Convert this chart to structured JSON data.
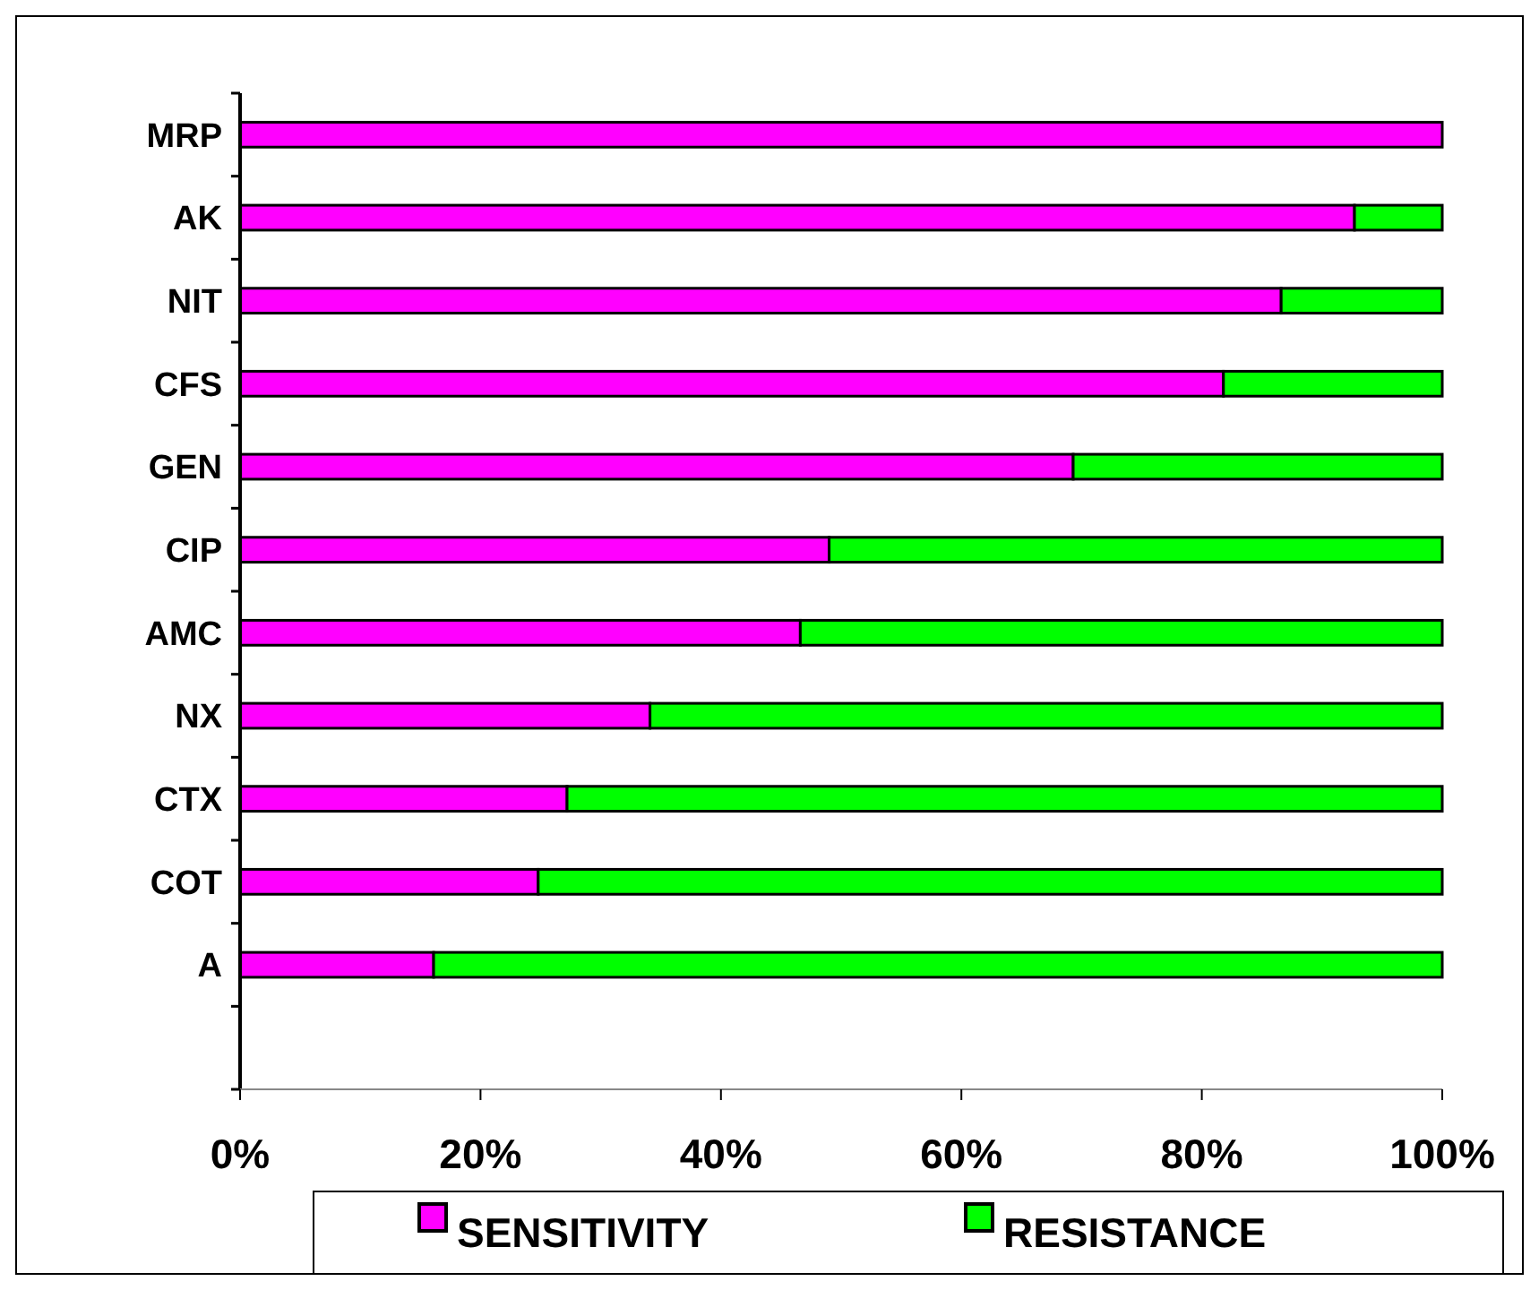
{
  "chart_data": {
    "type": "bar",
    "orientation": "horizontal",
    "stacked": true,
    "categories": [
      "MRP",
      "AK",
      "NIT",
      "CFS",
      "GEN",
      "CIP",
      "AMC",
      "NX",
      "CTX",
      "COT",
      "A",
      null
    ],
    "series": [
      {
        "name": "SENSITIVITY",
        "color": "#ff00ff",
        "values": [
          100,
          92.7,
          86.6,
          81.8,
          69.3,
          49.0,
          46.6,
          34.1,
          27.2,
          24.8,
          16.1,
          null
        ]
      },
      {
        "name": "RESISTANCE",
        "color": "#00ff00",
        "values": [
          0,
          7.3,
          13.4,
          18.2,
          30.7,
          51.0,
          53.4,
          65.9,
          72.8,
          75.2,
          83.9,
          null
        ]
      }
    ],
    "xlim": [
      0,
      100
    ],
    "xticks": [
      {
        "value": 0,
        "label": "0%"
      },
      {
        "value": 20,
        "label": "20%"
      },
      {
        "value": 40,
        "label": "40%"
      },
      {
        "value": 60,
        "label": "60%"
      },
      {
        "value": 80,
        "label": "80%"
      },
      {
        "value": 100,
        "label": "100%"
      }
    ],
    "legend": "bottom",
    "grid": false
  }
}
